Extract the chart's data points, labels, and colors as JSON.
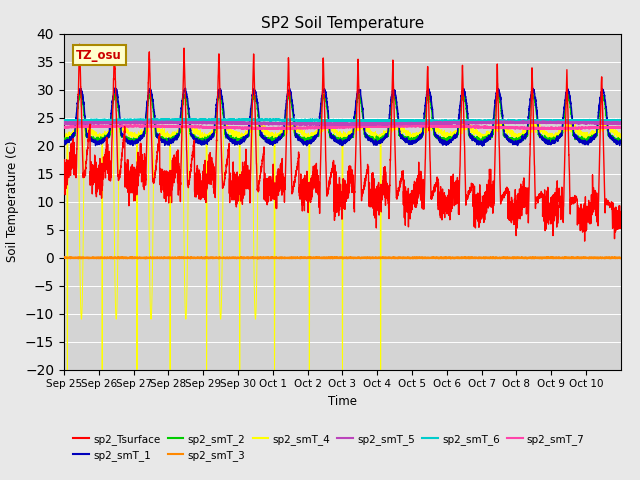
{
  "title": "SP2 Soil Temperature",
  "xlabel": "Time",
  "ylabel": "Soil Temperature (C)",
  "ylim": [
    -20,
    40
  ],
  "yticks": [
    -20,
    -15,
    -10,
    -5,
    0,
    5,
    10,
    15,
    20,
    25,
    30,
    35,
    40
  ],
  "tz_label": "TZ_osu",
  "fig_facecolor": "#e8e8e8",
  "ax_facecolor": "#d4d4d4",
  "hline_color": "#cc6600",
  "series_colors": {
    "sp2_Tsurface": "#ff0000",
    "sp2_smT_1": "#0000bb",
    "sp2_smT_2": "#00cc00",
    "sp2_smT_3": "#ff8800",
    "sp2_smT_4": "#ffff00",
    "sp2_smT_5": "#bb44bb",
    "sp2_smT_6": "#00cccc",
    "sp2_smT_7": "#ff44aa"
  },
  "n_days": 16,
  "tick_labels": [
    "Sep 25",
    "Sep 26",
    "Sep 27",
    "Sep 28",
    "Sep 29",
    "Sep 30",
    "Oct 1",
    "Oct 2",
    "Oct 3",
    "Oct 4",
    "Oct 5",
    "Oct 6",
    "Oct 7",
    "Oct 8",
    "Oct 9",
    "Oct 10"
  ]
}
